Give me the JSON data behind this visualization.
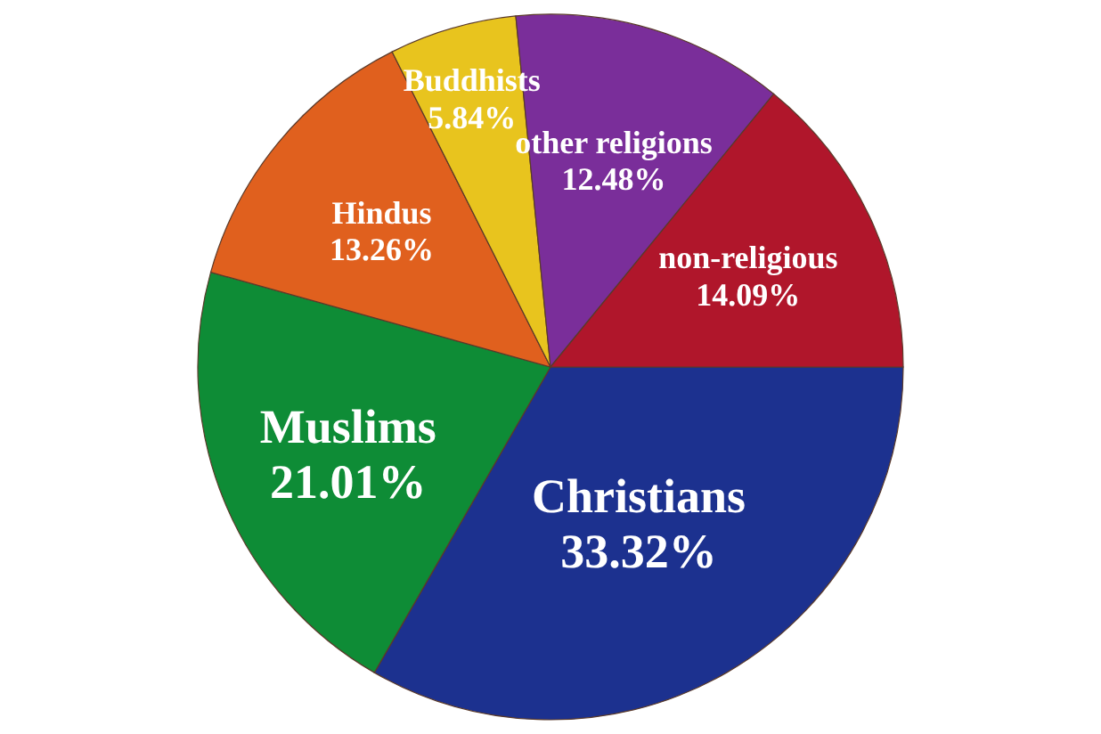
{
  "chart_data": {
    "type": "pie",
    "categories": [
      "Christians",
      "Muslims",
      "Hindus",
      "Buddhists",
      "other religions",
      "non-religious"
    ],
    "values": [
      33.32,
      21.01,
      13.26,
      5.84,
      12.48,
      14.09
    ],
    "value_labels": [
      "33.32%",
      "21.01%",
      "13.26%",
      "5.84%",
      "12.48%",
      "14.09%"
    ],
    "colors": [
      "#1c318f",
      "#0e8c36",
      "#e0601e",
      "#e8c41e",
      "#7a2e9a",
      "#b0162b"
    ]
  }
}
